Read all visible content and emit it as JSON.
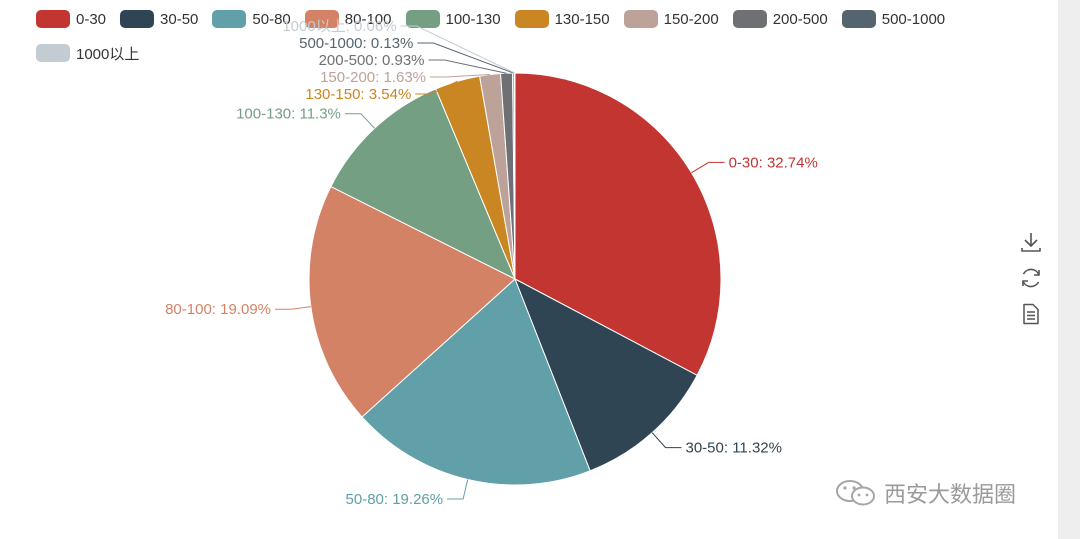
{
  "chart_data": {
    "type": "pie",
    "categories": [
      "0-30",
      "30-50",
      "50-80",
      "80-100",
      "100-130",
      "130-150",
      "150-200",
      "200-500",
      "500-1000",
      "1000以上"
    ],
    "values": [
      32.74,
      11.32,
      19.26,
      19.09,
      11.3,
      3.54,
      1.63,
      0.93,
      0.13,
      0.06
    ],
    "colors": [
      "#c23531",
      "#2f4554",
      "#61a0a8",
      "#d48265",
      "#749f83",
      "#ca8622",
      "#bda29a",
      "#6e7074",
      "#546570",
      "#c4ccd3"
    ],
    "labels": [
      "0-30: 32.74%",
      "30-50: 11.32%",
      "50-80: 19.26%",
      "80-100: 19.09%",
      "100-130: 11.3%",
      "130-150: 3.54%",
      "150-200: 1.63%",
      "200-500: 0.93%",
      "500-1000: 0.13%",
      "1000以上: 0.06%"
    ],
    "legend_position": "top"
  },
  "toolbox": {
    "icons": [
      "download-icon",
      "refresh-icon",
      "data-view-icon"
    ]
  },
  "watermark": {
    "text": "西安大数据圈",
    "icon": "wechat-icon"
  }
}
